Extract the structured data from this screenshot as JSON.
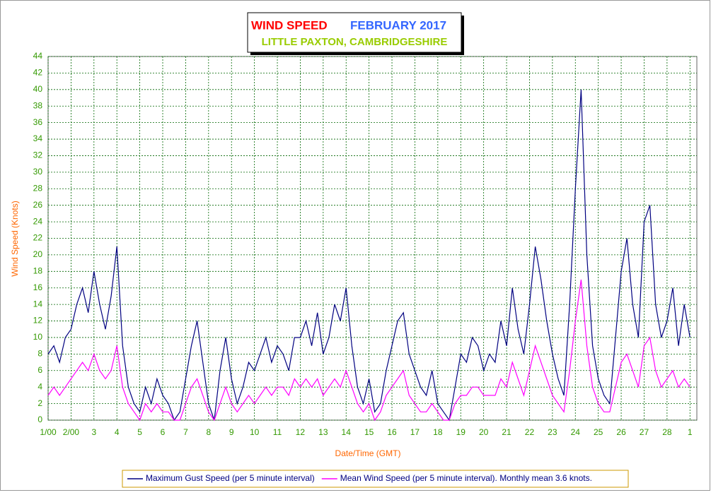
{
  "chart_data": {
    "type": "line",
    "title": "WIND SPEED",
    "title_period": "FEBRUARY 2017",
    "subtitle": "LITTLE PAXTON, CAMBRIDGESHIRE",
    "xlabel": "Date/Time (GMT)",
    "ylabel": "Wind Speed (Knots)",
    "xlim": [
      1,
      29.3
    ],
    "ylim": [
      0,
      44
    ],
    "yticks": [
      0,
      2,
      4,
      6,
      8,
      10,
      12,
      14,
      16,
      18,
      20,
      22,
      24,
      26,
      28,
      30,
      32,
      34,
      36,
      38,
      40,
      42,
      44
    ],
    "xticks": [
      {
        "value": 1,
        "label": "1/00"
      },
      {
        "value": 2,
        "label": "2/00"
      },
      3,
      4,
      5,
      6,
      7,
      8,
      9,
      10,
      11,
      12,
      13,
      14,
      15,
      16,
      17,
      18,
      19,
      20,
      21,
      22,
      23,
      24,
      25,
      26,
      27,
      28,
      {
        "value": 29,
        "label": "1"
      }
    ],
    "grid": true,
    "x": [
      1,
      1.25,
      1.5,
      1.75,
      2,
      2.25,
      2.5,
      2.75,
      3,
      3.25,
      3.5,
      3.75,
      4,
      4.25,
      4.5,
      4.75,
      5,
      5.25,
      5.5,
      5.75,
      6,
      6.25,
      6.5,
      6.75,
      7,
      7.25,
      7.5,
      7.75,
      8,
      8.25,
      8.5,
      8.75,
      9,
      9.25,
      9.5,
      9.75,
      10,
      10.25,
      10.5,
      10.75,
      11,
      11.25,
      11.5,
      11.75,
      12,
      12.25,
      12.5,
      12.75,
      13,
      13.25,
      13.5,
      13.75,
      14,
      14.25,
      14.5,
      14.75,
      15,
      15.25,
      15.5,
      15.75,
      16,
      16.25,
      16.5,
      16.75,
      17,
      17.25,
      17.5,
      17.75,
      18,
      18.25,
      18.5,
      18.75,
      19,
      19.25,
      19.5,
      19.75,
      20,
      20.25,
      20.5,
      20.75,
      21,
      21.25,
      21.5,
      21.75,
      22,
      22.25,
      22.5,
      22.75,
      23,
      23.25,
      23.5,
      23.75,
      24,
      24.25,
      24.5,
      24.75,
      25,
      25.25,
      25.5,
      25.75,
      26,
      26.25,
      26.5,
      26.75,
      27,
      27.25,
      27.5,
      27.75,
      28,
      28.25,
      28.5,
      28.75,
      29
    ],
    "series": [
      {
        "name": "Maximum Gust Speed (per 5 minute interval)",
        "color": "#000080",
        "values": [
          8,
          9,
          7,
          10,
          11,
          14,
          16,
          13,
          18,
          14,
          11,
          15,
          21,
          9,
          4,
          2,
          1,
          4,
          2,
          5,
          3,
          2,
          0,
          1,
          5,
          9,
          12,
          7,
          2,
          0,
          6,
          10,
          5,
          2,
          4,
          7,
          6,
          8,
          10,
          7,
          9,
          8,
          6,
          10,
          10,
          12,
          9,
          13,
          8,
          10,
          14,
          12,
          16,
          9,
          4,
          2,
          5,
          1,
          2,
          6,
          9,
          12,
          13,
          8,
          6,
          4,
          3,
          6,
          2,
          1,
          0,
          4,
          8,
          7,
          10,
          9,
          6,
          8,
          7,
          12,
          9,
          16,
          11,
          8,
          14,
          21,
          17,
          12,
          8,
          5,
          3,
          14,
          28,
          40,
          20,
          9,
          5,
          3,
          2,
          10,
          18,
          22,
          14,
          10,
          24,
          26,
          14,
          10,
          12,
          16,
          9,
          14,
          10
        ]
      },
      {
        "name": "Mean Wind Speed (per 5 minute interval). Monthly mean 3.6 knots.",
        "color": "#ff00ff",
        "values": [
          3,
          4,
          3,
          4,
          5,
          6,
          7,
          6,
          8,
          6,
          5,
          6,
          9,
          4,
          2,
          1,
          0,
          2,
          1,
          2,
          1,
          1,
          0,
          0,
          2,
          4,
          5,
          3,
          1,
          0,
          2,
          4,
          2,
          1,
          2,
          3,
          2,
          3,
          4,
          3,
          4,
          4,
          3,
          5,
          4,
          5,
          4,
          5,
          3,
          4,
          5,
          4,
          6,
          4,
          2,
          1,
          2,
          0,
          1,
          3,
          4,
          5,
          6,
          3,
          2,
          1,
          1,
          2,
          1,
          0,
          0,
          2,
          3,
          3,
          4,
          4,
          3,
          3,
          3,
          5,
          4,
          7,
          5,
          3,
          6,
          9,
          7,
          5,
          3,
          2,
          1,
          6,
          12,
          17,
          9,
          4,
          2,
          1,
          1,
          4,
          7,
          8,
          6,
          4,
          9,
          10,
          6,
          4,
          5,
          6,
          4,
          5,
          4
        ]
      }
    ]
  }
}
